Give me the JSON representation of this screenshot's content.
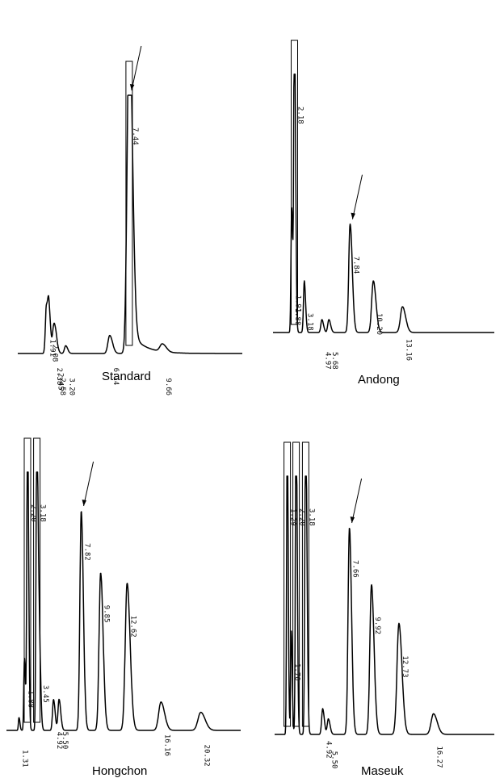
{
  "chart_data": [
    {
      "type": "line",
      "title": "Standard",
      "arrow_peak": "7.44",
      "peaks": [
        {
          "label": "1.91",
          "rt": 1.91,
          "height": 0.18
        },
        {
          "label": "2.08",
          "rt": 2.08,
          "height": 0.16
        },
        {
          "label": "2.38",
          "rt": 2.38,
          "height": 0.07
        },
        {
          "label": "2.45",
          "rt": 2.45,
          "height": 0.05
        },
        {
          "label": "2.58",
          "rt": 2.58,
          "height": 0.03
        },
        {
          "label": "3.20",
          "rt": 3.2,
          "height": 0.03
        },
        {
          "label": "6.14",
          "rt": 6.14,
          "height": 0.07
        },
        {
          "label": "7.44",
          "rt": 7.44,
          "height": 1.25
        },
        {
          "label": "9.66",
          "rt": 9.66,
          "height": 0.03
        }
      ]
    },
    {
      "type": "line",
      "title": "Andong",
      "arrow_peak": "7.84",
      "peaks": [
        {
          "label": "1.91",
          "rt": 1.91,
          "height": 0.27
        },
        {
          "label": "1.88",
          "rt": 1.88,
          "height": 0.22
        },
        {
          "label": "2.18",
          "rt": 2.18,
          "height": 1.25
        },
        {
          "label": "3.18",
          "rt": 3.18,
          "height": 0.2
        },
        {
          "label": "4.97",
          "rt": 4.97,
          "height": 0.05
        },
        {
          "label": "5.68",
          "rt": 5.68,
          "height": 0.05
        },
        {
          "label": "7.84",
          "rt": 7.84,
          "height": 0.42
        },
        {
          "label": "10.20",
          "rt": 10.2,
          "height": 0.2
        },
        {
          "label": "13.16",
          "rt": 13.16,
          "height": 0.1
        }
      ]
    },
    {
      "type": "line",
      "title": "Hongchon",
      "arrow_peak": "7.82",
      "peaks": [
        {
          "label": "1.31",
          "rt": 1.31,
          "height": 0.05
        },
        {
          "label": "1.88",
          "rt": 1.88,
          "height": 0.28
        },
        {
          "label": "2.20",
          "rt": 2.2,
          "height": 1.25
        },
        {
          "label": "3.18",
          "rt": 3.18,
          "height": 1.25
        },
        {
          "label": "3.45",
          "rt": 3.45,
          "height": 0.3
        },
        {
          "label": "4.92",
          "rt": 4.92,
          "height": 0.12
        },
        {
          "label": "5.50",
          "rt": 5.5,
          "height": 0.12
        },
        {
          "label": "7.82",
          "rt": 7.82,
          "height": 0.85
        },
        {
          "label": "9.85",
          "rt": 9.85,
          "height": 0.61
        },
        {
          "label": "12.62",
          "rt": 12.62,
          "height": 0.57
        },
        {
          "label": "16.16",
          "rt": 16.16,
          "height": 0.11
        },
        {
          "label": "20.32",
          "rt": 20.32,
          "height": 0.07
        }
      ]
    },
    {
      "type": "line",
      "title": "Maseuk",
      "arrow_peak": "7.66",
      "peaks": [
        {
          "label": "1.29",
          "rt": 1.29,
          "height": 1.25
        },
        {
          "label": "1.70",
          "rt": 1.7,
          "height": 0.4
        },
        {
          "label": "2.20",
          "rt": 2.2,
          "height": 1.25
        },
        {
          "label": "3.18",
          "rt": 3.18,
          "height": 1.25
        },
        {
          "label": "4.92",
          "rt": 4.92,
          "height": 0.1
        },
        {
          "label": "5.50",
          "rt": 5.5,
          "height": 0.06
        },
        {
          "label": "7.66",
          "rt": 7.66,
          "height": 0.8
        },
        {
          "label": "9.92",
          "rt": 9.92,
          "height": 0.58
        },
        {
          "label": "12.73",
          "rt": 12.73,
          "height": 0.43
        },
        {
          "label": "16.27",
          "rt": 16.27,
          "height": 0.08
        }
      ]
    }
  ]
}
